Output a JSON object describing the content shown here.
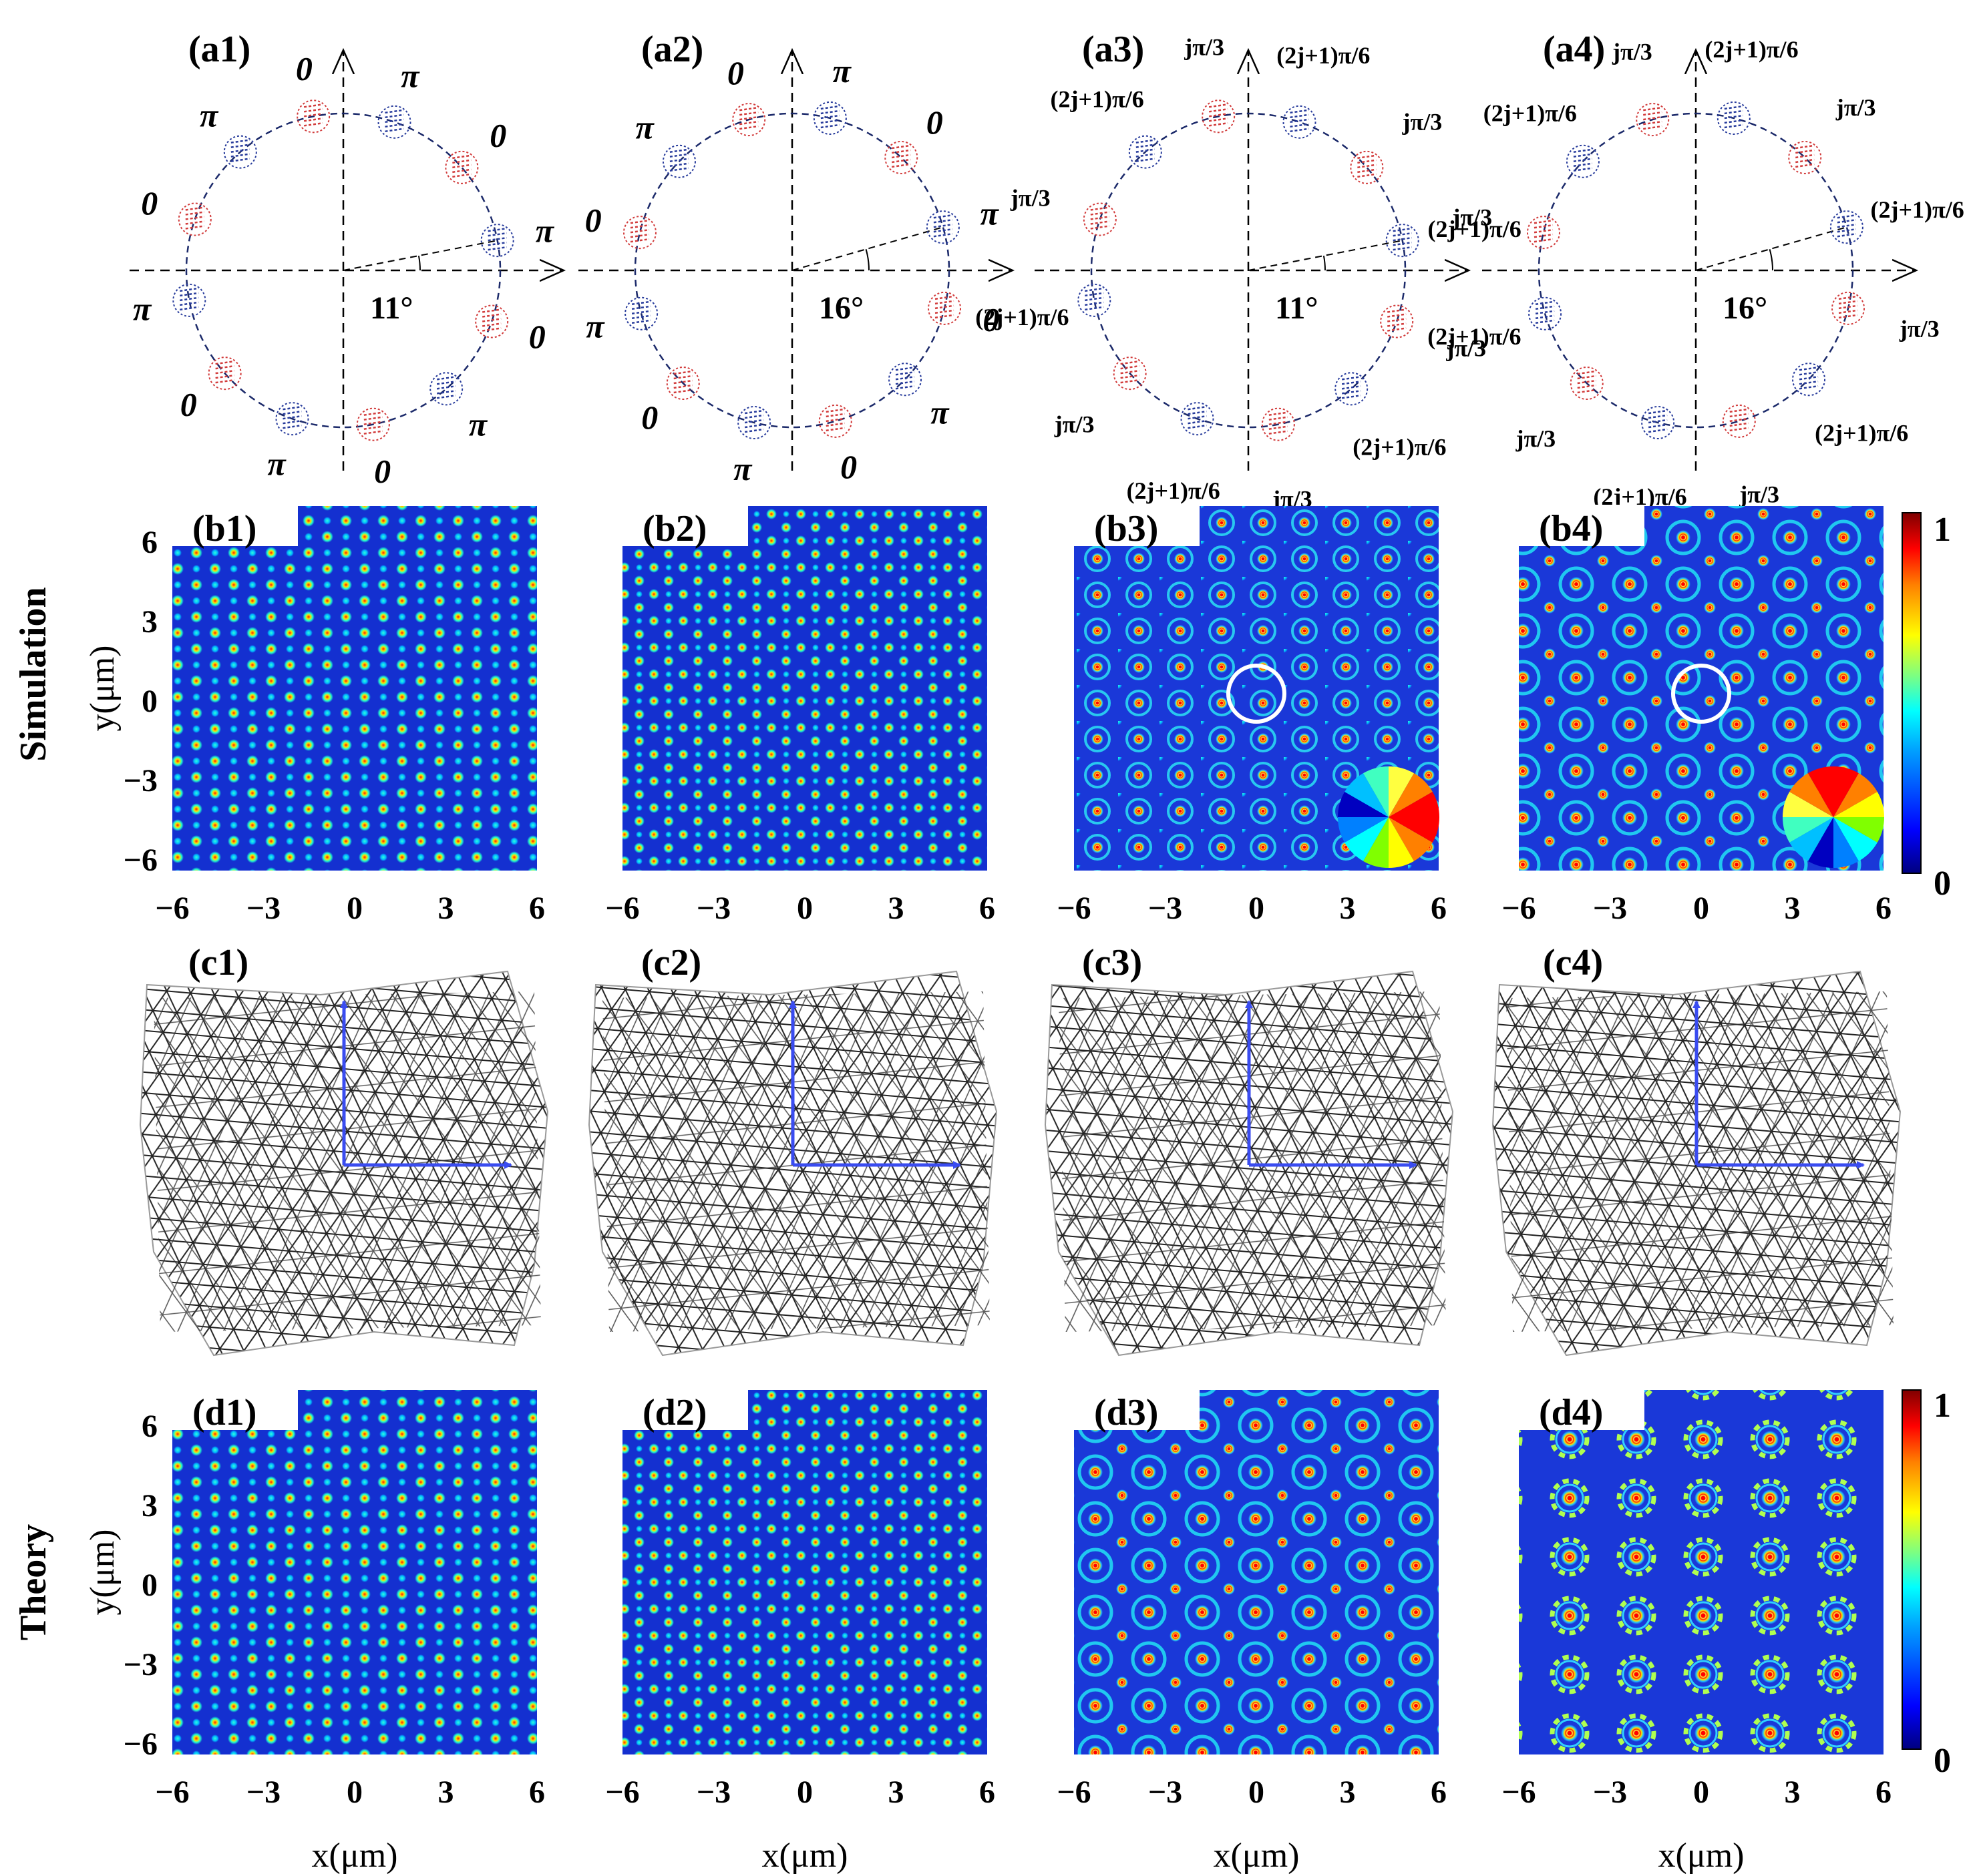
{
  "figure": {
    "row_labels": {
      "simulation": "Simulation",
      "theory": "Theory"
    },
    "axis": {
      "x_label": "x(μm)",
      "y_label": "y(μm)",
      "x_ticks": [
        "−6",
        "−3",
        "0",
        "3",
        "6"
      ],
      "y_ticks": [
        "6",
        "3",
        "0",
        "−3",
        "−6"
      ]
    },
    "colorbar": {
      "max": "1",
      "min": "0",
      "colors": [
        "#00007f",
        "#0000ff",
        "#00a0ff",
        "#00ffff",
        "#7fff7f",
        "#ffff00",
        "#ff8000",
        "#ff0000",
        "#7f0000"
      ]
    },
    "row_a": [
      {
        "label": "(a1)",
        "angle": "11°",
        "phases": [
          "π",
          "0",
          "π",
          "0",
          "π",
          "0",
          "π",
          "0",
          "π",
          "0",
          "π",
          "0"
        ]
      },
      {
        "label": "(a2)",
        "angle": "16°",
        "phases": [
          "π",
          "0",
          "π",
          "0",
          "π",
          "0",
          "π",
          "0",
          "π",
          "0",
          "π",
          "0"
        ]
      },
      {
        "label": "(a3)",
        "angle": "11°",
        "phases": [
          "(2j+1)π/6",
          "jπ/3",
          "(2j+1)π/6",
          "jπ/3",
          "(2j+1)π/6",
          "jπ/3",
          "(2j+1)π/6",
          "jπ/3",
          "(2j+1)π/6",
          "jπ/3",
          "(2j+1)π/6",
          "jπ/3"
        ]
      },
      {
        "label": "(a4)",
        "angle": "16°",
        "phases": [
          "(2j+1)π/6",
          "jπ/3",
          "(2j+1)π/6",
          "jπ/3",
          "(2j+1)π/6",
          "jπ/3",
          "(2j+1)π/6",
          "jπ/3",
          "(2j+1)π/6",
          "jπ/3",
          "(2j+1)π/6",
          "jπ/3"
        ]
      }
    ],
    "row_b": [
      "(b1)",
      "(b2)",
      "(b3)",
      "(b4)"
    ],
    "row_c": [
      "(c1)",
      "(c2)",
      "(c3)",
      "(c4)"
    ],
    "row_d": [
      "(d1)",
      "(d2)",
      "(d3)",
      "(d4)"
    ],
    "colors": {
      "red_spot": "#d23c3c",
      "blue_spot": "#283c9c",
      "field_bg": "#1430d0",
      "arrow": "#3a4cf0"
    }
  }
}
